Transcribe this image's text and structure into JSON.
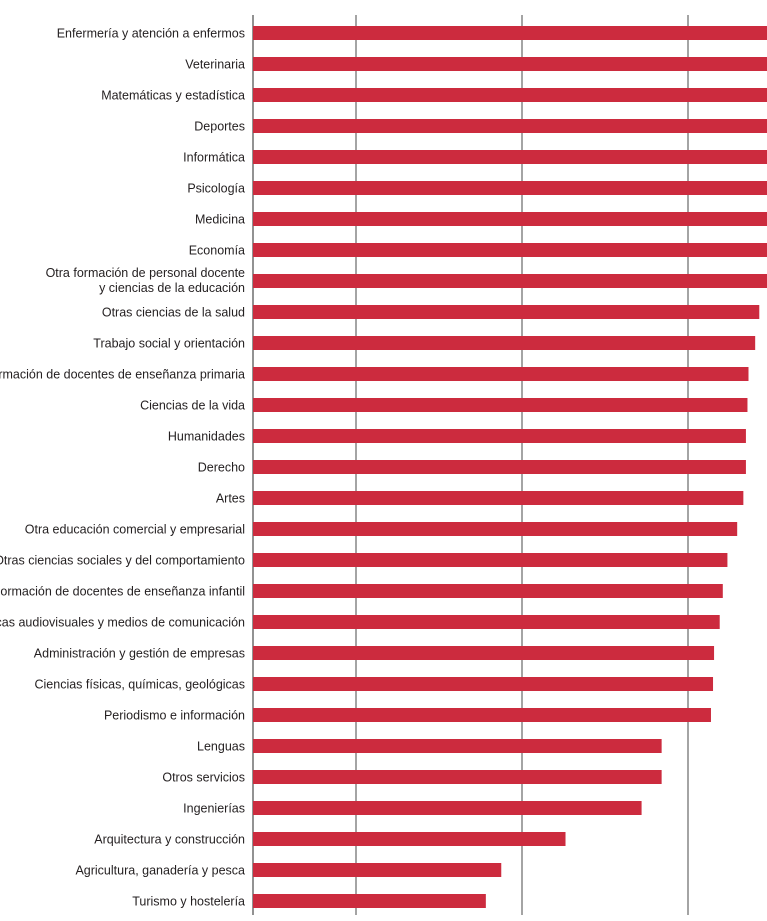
{
  "chart_data": {
    "type": "bar",
    "orientation": "horizontal",
    "categories": [
      "Enfermería y atención a enfermos",
      "Veterinaria",
      "Matemáticas y estadística",
      "Deportes",
      "Informática",
      "Psicología",
      "Medicina",
      "Economía",
      [
        "Otra formación de personal docente",
        "y ciencias de la educación"
      ],
      "Otras ciencias de la salud",
      "Trabajo social y orientación",
      "Formación de docentes de enseñanza primaria",
      "Ciencias de la vida",
      "Humanidades",
      "Derecho",
      "Artes",
      "Otra educación comercial y empresarial",
      "Otras ciencias sociales y del comportamiento",
      "Formación de docentes de enseñanza infantil",
      "Técnicas audiovisuales y medios de comunicación",
      "Administración y gestión de empresas",
      "Ciencias físicas, químicas, geológicas",
      "Periodismo e información",
      "Lenguas",
      "Otros servicios",
      "Ingenierías",
      "Arquitectura y construcción",
      "Agricultura, ganadería y pesca",
      "Turismo y hostelería"
    ],
    "values": [
      100,
      100,
      100,
      100,
      100,
      100,
      100,
      100,
      100,
      98.5,
      97.7,
      96.4,
      96.2,
      95.9,
      95.9,
      95.4,
      94.2,
      92.3,
      91.4,
      90.8,
      89.7,
      89.5,
      89.1,
      79.5,
      79.5,
      75.6,
      60.8,
      48.3,
      45.3
    ],
    "xlim": [
      0,
      100
    ],
    "gridlines": [
      0,
      15,
      30,
      45
    ],
    "grid": true,
    "title": "",
    "xlabel": "",
    "ylabel": "",
    "bar_color": "#cc2b3e",
    "grid_color": "#4a4a4a",
    "text_color": "#231f20"
  }
}
